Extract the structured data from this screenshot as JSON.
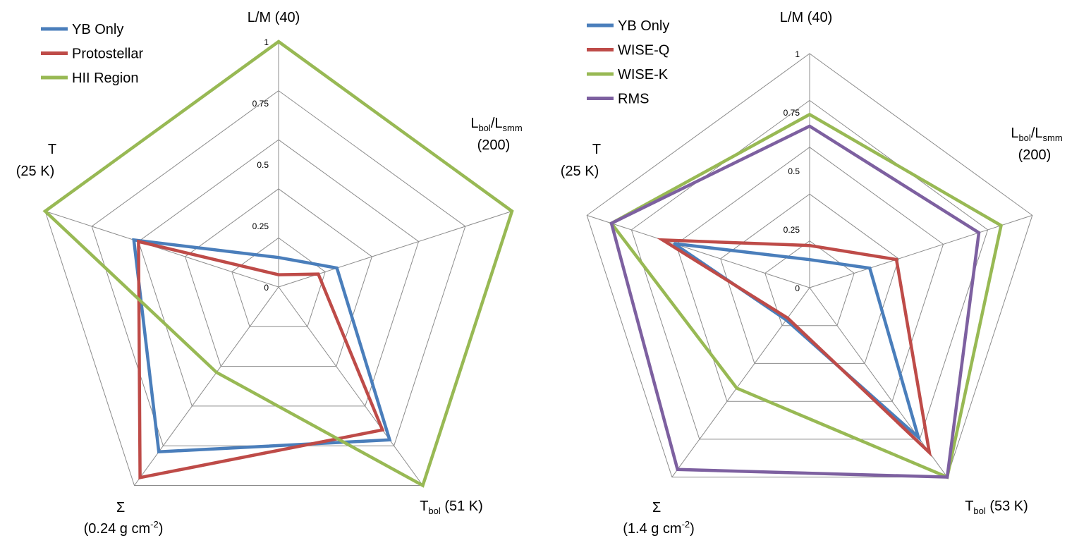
{
  "chart_data": [
    {
      "type": "radar",
      "axes": [
        {
          "key": "lm",
          "line1_main": "L/M (40)",
          "line1_sub": "",
          "line1_rest": "",
          "line2_main": "",
          "line2_sup": "",
          "line2_rest": ""
        },
        {
          "key": "lbol",
          "line1_main": "L",
          "line1_sub": "bol",
          "line1_mid": "/L",
          "line1_sub2": "smm",
          "line2_main": "(200)"
        },
        {
          "key": "tbol",
          "line1_main": "T",
          "line1_sub": "bol",
          "line1_rest": " (51 K)"
        },
        {
          "key": "sigma",
          "line1_main": "Σ",
          "line2_main": "(0.24 g cm",
          "line2_sup": "-2",
          "line2_rest": ")"
        },
        {
          "key": "t",
          "line1_main": "T",
          "line2_main": "(25 K)"
        }
      ],
      "ticks": [
        "0",
        "0.25",
        "0.5",
        "0.75",
        "1"
      ],
      "range": [
        0,
        1
      ],
      "series": [
        {
          "name": "YB Only",
          "color": "#4a7ebb",
          "values": [
            0.12,
            0.25,
            0.77,
            0.83,
            0.62
          ]
        },
        {
          "name": "Protostellar",
          "color": "#be4b48",
          "values": [
            0.05,
            0.17,
            0.72,
            0.96,
            0.6
          ]
        },
        {
          "name": "HII Region",
          "color": "#98b954",
          "values": [
            1.0,
            1.0,
            1.0,
            0.43,
            1.0
          ]
        }
      ],
      "legend_position": "top-left"
    },
    {
      "type": "radar",
      "axes": [
        {
          "key": "lm",
          "line1_main": "L/M (40)"
        },
        {
          "key": "lbol",
          "line1_main": "L",
          "line1_sub": "bol",
          "line1_mid": "/L",
          "line1_sub2": "smm",
          "line2_main": "(200)"
        },
        {
          "key": "tbol",
          "line1_main": "T",
          "line1_sub": "bol",
          "line1_rest": " (53 K)"
        },
        {
          "key": "sigma",
          "line1_main": "Σ",
          "line2_main": "(1.4 g cm",
          "line2_sup": "-2",
          "line2_rest": ")"
        },
        {
          "key": "t",
          "line1_main": "T",
          "line2_main": "(25 K)"
        }
      ],
      "ticks": [
        "0",
        "0.25",
        "0.5",
        "0.75",
        "1"
      ],
      "range": [
        0,
        1
      ],
      "series": [
        {
          "name": "YB Only",
          "color": "#4a7ebb",
          "values": [
            0.12,
            0.27,
            0.79,
            0.17,
            0.61
          ]
        },
        {
          "name": "WISE-Q",
          "color": "#be4b48",
          "values": [
            0.18,
            0.39,
            0.87,
            0.16,
            0.66
          ]
        },
        {
          "name": "WISE-K",
          "color": "#98b954",
          "values": [
            0.74,
            0.86,
            1.0,
            0.53,
            0.89
          ]
        },
        {
          "name": "RMS",
          "color": "#7d60a0",
          "values": [
            0.69,
            0.76,
            1.0,
            0.96,
            0.89
          ]
        }
      ],
      "legend_position": "top-left"
    }
  ]
}
